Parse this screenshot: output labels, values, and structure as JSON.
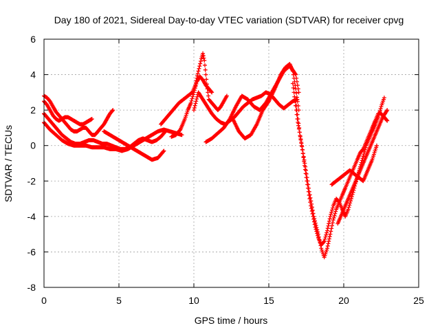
{
  "chart_data": {
    "type": "scatter",
    "title": "Day 180 of 2021, Sidereal Day-to-day VTEC variation (SDTVAR) for receiver cpvg",
    "xlabel": "GPS time / hours",
    "ylabel": "SDTVAR / TECUs",
    "xlim": [
      0,
      25
    ],
    "ylim": [
      -8,
      6
    ],
    "x_ticks": [
      0,
      5,
      10,
      15,
      20,
      25
    ],
    "y_ticks": [
      -8,
      -6,
      -4,
      -2,
      0,
      2,
      4,
      6
    ],
    "grid": true,
    "marker": "plus",
    "color": "#ff0000",
    "series": [
      {
        "x": [
          0.0,
          0.2,
          0.4,
          0.6,
          0.8,
          1.0,
          1.2,
          1.4,
          1.6,
          1.8,
          2.0,
          2.2,
          2.4,
          2.6,
          2.8,
          3.0,
          3.2,
          3.4,
          3.6,
          3.8,
          4.0,
          4.2,
          4.4,
          4.6
        ],
        "y": [
          2.8,
          2.7,
          2.5,
          2.2,
          1.9,
          1.7,
          1.5,
          1.3,
          1.1,
          0.9,
          0.8,
          0.8,
          0.9,
          1.0,
          1.0,
          0.8,
          0.6,
          0.6,
          0.8,
          1.0,
          1.2,
          1.5,
          1.8,
          2.0
        ]
      },
      {
        "x": [
          0.0,
          0.2,
          0.4,
          0.6,
          0.8,
          1.0,
          1.2,
          1.4,
          1.6,
          1.8,
          2.0,
          2.2,
          2.4,
          2.6,
          2.8,
          3.0,
          3.2
        ],
        "y": [
          2.5,
          2.3,
          2.0,
          1.7,
          1.5,
          1.4,
          1.5,
          1.6,
          1.6,
          1.5,
          1.4,
          1.3,
          1.2,
          1.2,
          1.3,
          1.4,
          1.5
        ]
      },
      {
        "x": [
          0.0,
          0.3,
          0.6,
          0.9,
          1.2,
          1.5,
          1.8,
          2.1,
          2.4,
          2.7,
          3.0,
          3.3,
          3.6,
          3.9,
          4.2,
          4.5,
          4.8,
          5.1,
          5.4,
          5.7,
          6.0,
          6.3,
          6.6,
          6.9,
          7.2,
          7.5,
          7.8,
          8.1
        ],
        "y": [
          1.8,
          1.5,
          1.2,
          0.9,
          0.6,
          0.4,
          0.2,
          0.1,
          0.1,
          0.2,
          0.3,
          0.3,
          0.2,
          0.1,
          0.1,
          0.0,
          -0.1,
          -0.2,
          -0.2,
          -0.1,
          0.1,
          0.3,
          0.4,
          0.3,
          0.2,
          0.3,
          0.5,
          0.8
        ]
      },
      {
        "x": [
          0.0,
          0.4,
          0.8,
          1.2,
          1.6,
          2.0,
          2.4,
          2.8,
          3.2,
          3.6,
          4.0,
          4.4,
          4.8,
          5.2,
          5.6,
          6.0,
          6.4,
          6.8,
          7.2,
          7.6,
          8.0,
          8.4,
          8.8,
          9.2
        ],
        "y": [
          1.3,
          0.9,
          0.6,
          0.3,
          0.1,
          0.0,
          0.0,
          0.0,
          -0.1,
          -0.1,
          -0.1,
          -0.2,
          -0.2,
          -0.3,
          -0.2,
          0.0,
          0.2,
          0.4,
          0.6,
          0.8,
          0.9,
          0.8,
          0.7,
          0.6
        ]
      },
      {
        "x": [
          4.0,
          4.4,
          4.8,
          5.2,
          5.6,
          6.0,
          6.4,
          6.8,
          7.2,
          7.6,
          8.0
        ],
        "y": [
          0.8,
          0.6,
          0.4,
          0.2,
          0.0,
          -0.2,
          -0.4,
          -0.6,
          -0.8,
          -0.7,
          -0.3
        ]
      },
      {
        "x": [
          7.8,
          8.2,
          8.6,
          9.0,
          9.3,
          9.6,
          9.9,
          10.1,
          10.3,
          10.5,
          10.6,
          10.7,
          10.8,
          10.9,
          11.0,
          11.2,
          11.4,
          11.6,
          11.8,
          12.0,
          12.2
        ],
        "y": [
          1.2,
          1.6,
          2.0,
          2.4,
          2.6,
          2.8,
          3.0,
          3.4,
          4.2,
          4.9,
          5.2,
          4.8,
          4.0,
          3.2,
          2.6,
          2.4,
          2.2,
          2.0,
          2.2,
          2.5,
          2.8
        ]
      },
      {
        "x": [
          8.5,
          8.8,
          9.1,
          9.4,
          9.6,
          9.8,
          10.0,
          10.2,
          10.4,
          10.6,
          10.8,
          11.0,
          11.2
        ],
        "y": [
          0.5,
          0.6,
          0.9,
          1.5,
          2.0,
          2.4,
          3.0,
          3.6,
          3.9,
          3.7,
          3.4,
          3.2,
          3.0
        ]
      },
      {
        "x": [
          10.0,
          10.3,
          10.6,
          10.9,
          11.2,
          11.5,
          11.8,
          12.1,
          12.4,
          12.7,
          13.0,
          13.3,
          13.6,
          13.9,
          14.2,
          14.5,
          14.8,
          15.1,
          15.4,
          15.7,
          16.0,
          16.3,
          16.6,
          16.9
        ],
        "y": [
          2.0,
          3.0,
          2.6,
          2.2,
          1.8,
          1.5,
          1.3,
          1.2,
          1.4,
          1.6,
          1.9,
          2.2,
          2.4,
          2.6,
          2.7,
          2.8,
          3.0,
          2.9,
          2.6,
          2.3,
          2.1,
          2.3,
          2.5,
          2.6
        ]
      },
      {
        "x": [
          10.8,
          11.2,
          11.6,
          12.0,
          12.4,
          12.8,
          13.2,
          13.6,
          14.0,
          14.4,
          14.8,
          15.2,
          15.6,
          16.0,
          16.4,
          16.8,
          17.0
        ],
        "y": [
          0.2,
          0.4,
          0.7,
          1.0,
          1.5,
          2.2,
          2.8,
          2.6,
          2.2,
          2.0,
          2.4,
          3.0,
          3.6,
          4.2,
          4.5,
          4.0,
          3.0
        ]
      },
      {
        "x": [
          12.6,
          13.0,
          13.4,
          13.8,
          14.2,
          14.6,
          15.0,
          15.4,
          15.8,
          16.1,
          16.4,
          16.6,
          16.8,
          17.0
        ],
        "y": [
          1.5,
          0.8,
          0.4,
          0.6,
          1.2,
          2.0,
          2.5,
          3.2,
          4.0,
          4.4,
          4.6,
          4.2,
          3.2,
          2.0
        ]
      },
      {
        "x": [
          16.6,
          16.9,
          17.2,
          17.5,
          17.8,
          18.1,
          18.3,
          18.5,
          18.7,
          18.9,
          19.1,
          19.3,
          19.5,
          19.7,
          19.9,
          20.1,
          20.3,
          20.5,
          20.7,
          20.9,
          21.1,
          21.3,
          21.5,
          21.7,
          21.9,
          22.1,
          22.3,
          22.5,
          22.7
        ],
        "y": [
          3.5,
          1.5,
          0.0,
          -1.8,
          -3.4,
          -4.6,
          -5.2,
          -5.6,
          -5.4,
          -4.8,
          -4.0,
          -3.4,
          -3.0,
          -3.2,
          -3.6,
          -4.0,
          -3.6,
          -3.0,
          -2.4,
          -1.8,
          -1.2,
          -0.6,
          0.0,
          0.4,
          0.8,
          1.2,
          1.6,
          2.2,
          2.7
        ]
      },
      {
        "x": [
          16.8,
          17.1,
          17.4,
          17.7,
          18.0,
          18.3,
          18.5,
          18.7,
          18.9,
          19.1,
          19.3,
          19.5,
          19.7,
          19.9,
          20.1,
          20.3,
          20.5,
          20.7,
          20.9,
          21.1,
          21.3,
          21.5,
          21.7,
          21.9,
          22.1,
          22.3,
          22.5,
          22.7,
          22.9
        ],
        "y": [
          2.5,
          0.5,
          -1.0,
          -2.6,
          -4.0,
          -5.0,
          -5.8,
          -6.3,
          -5.8,
          -5.0,
          -4.2,
          -3.6,
          -3.2,
          -2.8,
          -2.4,
          -2.0,
          -1.6,
          -1.2,
          -0.8,
          -0.4,
          -0.2,
          0.2,
          0.6,
          1.0,
          1.4,
          1.8,
          1.8,
          1.6,
          1.4
        ]
      },
      {
        "x": [
          19.2,
          19.5,
          19.8,
          20.1,
          20.4,
          20.7,
          21.0,
          21.3,
          21.6,
          21.9,
          22.2
        ],
        "y": [
          -2.2,
          -2.0,
          -1.8,
          -1.6,
          -1.4,
          -1.6,
          -1.8,
          -2.0,
          -1.4,
          -0.8,
          0.0
        ]
      },
      {
        "x": [
          19.6,
          19.9,
          20.2,
          20.5,
          20.8,
          21.1,
          21.4,
          21.7,
          22.0,
          22.3,
          22.6,
          22.9
        ],
        "y": [
          -4.4,
          -3.8,
          -3.2,
          -2.6,
          -2.0,
          -1.4,
          -0.8,
          -0.2,
          0.4,
          1.0,
          1.6,
          2.0
        ]
      }
    ]
  }
}
